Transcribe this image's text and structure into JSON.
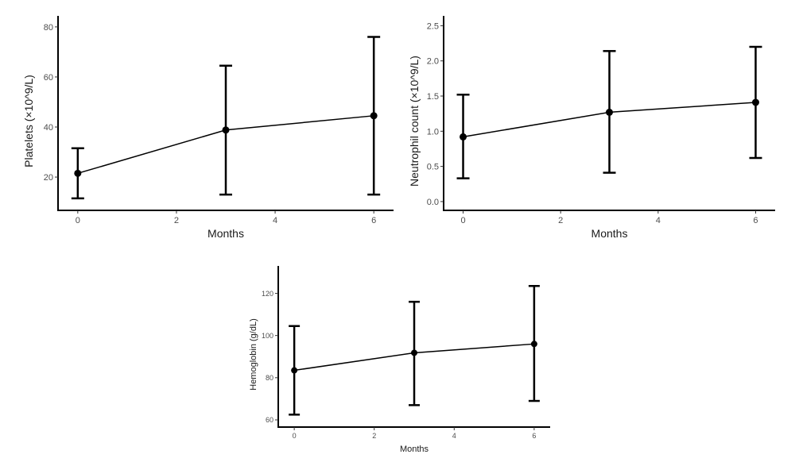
{
  "chart_data": [
    {
      "type": "line",
      "xlabel": "Months",
      "ylabel": "Platelets (×10^9/L)",
      "x": [
        0,
        3,
        6
      ],
      "values": [
        21.5,
        38.8,
        44.5
      ],
      "error_low": [
        11.5,
        13,
        13
      ],
      "error_high": [
        31.5,
        64.5,
        76
      ],
      "xlim": [
        -0.4,
        6.4
      ],
      "ylim": [
        6.7,
        84.4
      ],
      "xticks": [
        "0",
        "2",
        "4",
        "6"
      ],
      "yticks": [
        "20",
        "40",
        "60",
        "80"
      ],
      "grid": false,
      "color": "#000000"
    },
    {
      "type": "line",
      "xlabel": "Months",
      "ylabel": "Neutrophil count (×10^9/L)",
      "x": [
        0,
        3,
        6
      ],
      "values": [
        0.92,
        1.27,
        1.41
      ],
      "error_low": [
        0.33,
        0.41,
        0.62
      ],
      "error_high": [
        1.52,
        2.14,
        2.2
      ],
      "xlim": [
        -0.4,
        6.4
      ],
      "ylim": [
        -0.125,
        2.64
      ],
      "xticks": [
        "0",
        "2",
        "4",
        "6"
      ],
      "yticks": [
        "0.0",
        "0.5",
        "1.0",
        "1.5",
        "2.0",
        "2.5"
      ],
      "grid": false,
      "color": "#000000"
    },
    {
      "type": "line",
      "xlabel": "Months",
      "ylabel": "Hemoglobin (g/dL)",
      "x": [
        0,
        3,
        6
      ],
      "values": [
        83.5,
        91.8,
        96
      ],
      "error_low": [
        62.5,
        67,
        69
      ],
      "error_high": [
        104.5,
        116,
        123.5
      ],
      "xlim": [
        -0.4,
        6.4
      ],
      "ylim": [
        56.6,
        133
      ],
      "xticks": [
        "0",
        "2",
        "4",
        "6"
      ],
      "yticks": [
        "60",
        "80",
        "100",
        "120"
      ],
      "grid": false,
      "color": "#000000"
    }
  ]
}
